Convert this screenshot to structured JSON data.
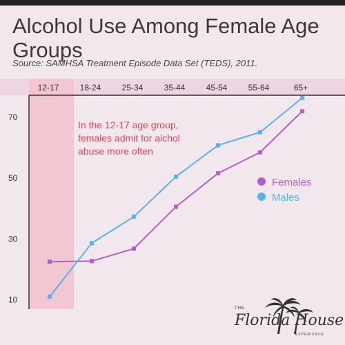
{
  "header": {
    "title": "Alcohol Use Among Female Age Groups",
    "subtitle": "Source: SAMHSA Treatment Episode Data Set (TEDS), 2011."
  },
  "chart_data": {
    "type": "line",
    "title": "Alcohol Use Among Female Age Groups",
    "subtitle": "Source: SAMHSA Treatment Episode Data Set (TEDS), 2011.",
    "categories": [
      "12-17",
      "18-24",
      "25-34",
      "35-44",
      "45-54",
      "55-64",
      "65+"
    ],
    "series": [
      {
        "name": "Females",
        "color": "#b45fc7",
        "values": [
          22.5,
          22.7,
          26.8,
          40.6,
          51.6,
          58.5,
          72.0
        ]
      },
      {
        "name": "Males",
        "color": "#55b3ee",
        "values": [
          11.0,
          28.6,
          37.3,
          50.5,
          60.8,
          65.1,
          76.4
        ]
      }
    ],
    "ylim": [
      6,
      80
    ],
    "yticks": [
      10,
      30,
      50,
      70
    ],
    "grid": false,
    "legend": "right",
    "highlight_category": "12-17",
    "highlight_color": "#f2c7d1",
    "annotation": {
      "lines": [
        "In the 12-17 age group,",
        "females admit for alchol",
        "abuse more often"
      ],
      "color": "#e2434f"
    }
  },
  "logo": {
    "the": "THE",
    "brand": "Florida House",
    "experience": "EXPERIENCE"
  }
}
